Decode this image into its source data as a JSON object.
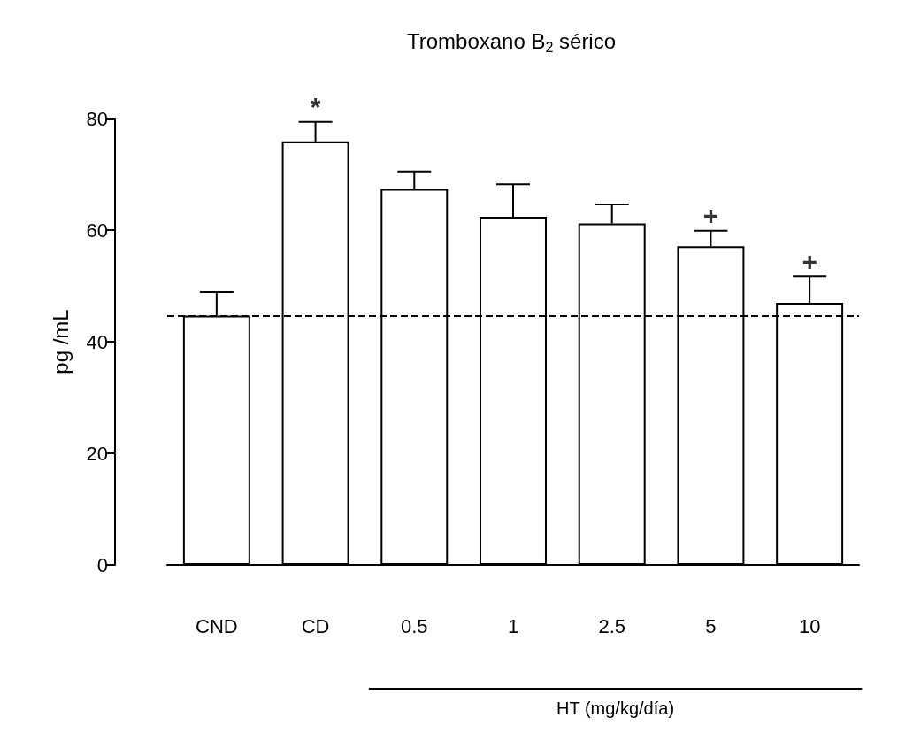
{
  "chart_data": {
    "type": "bar",
    "title": "Tromboxano B$_{2}$ sérico",
    "ylabel": "pg /mL",
    "xlabel": "HT (mg/kg/día)",
    "categories": [
      "CND",
      "CD",
      "0.5",
      "1",
      "2.5",
      "5",
      "10"
    ],
    "values": [
      44.7,
      75.9,
      67.4,
      62.4,
      61.2,
      57.1,
      47.0
    ],
    "errors": [
      [
        44.7,
        48.9
      ],
      [
        75.9,
        79.4
      ],
      [
        67.4,
        70.5
      ],
      [
        62.4,
        68.2
      ],
      [
        61.2,
        64.6
      ],
      [
        57.1,
        59.9
      ],
      [
        47.0,
        51.7
      ]
    ],
    "color": "#ffffff",
    "ylim": [
      0,
      80
    ],
    "yticks": [
      0,
      20,
      40,
      60,
      80
    ],
    "grid": false,
    "ref_lines": [
      {
        "axis": "y",
        "value": 44.7,
        "line_style": "dashed",
        "color": "#000000"
      }
    ],
    "annotations": [
      {
        "text": "*",
        "x": "CD",
        "y": 79.4
      },
      {
        "text": "+",
        "x": "5",
        "y": 59.9
      },
      {
        "text": "+",
        "x": "10",
        "y": 51.7
      }
    ]
  }
}
